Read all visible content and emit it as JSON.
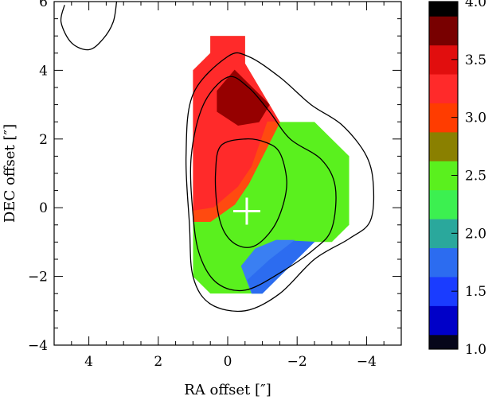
{
  "chart_data": {
    "type": "heatmap",
    "xlabel": "RA offset [″]",
    "ylabel": "DEC offset [″]",
    "xlim": [
      5,
      -5
    ],
    "ylim": [
      -4,
      6
    ],
    "xticks": [
      4,
      2,
      0,
      -2,
      -4
    ],
    "yticks": [
      -4,
      -2,
      0,
      2,
      4,
      6
    ],
    "xtick_labels": [
      "4",
      "2",
      "0",
      "−2",
      "−4"
    ],
    "ytick_labels": [
      "−4",
      "−2",
      "0",
      "2",
      "4",
      "6"
    ],
    "colorbar": {
      "range": [
        1.0,
        4.0
      ],
      "ticks": [
        1.0,
        1.5,
        2.0,
        2.5,
        3.0,
        3.5,
        4.0
      ],
      "tick_labels": [
        "1.0",
        "1.5",
        "2.0",
        "2.5",
        "3.0",
        "3.5",
        "4.0"
      ],
      "levels": [
        {
          "from": 1.0,
          "to": 1.125,
          "color": "#06061a"
        },
        {
          "from": 1.125,
          "to": 1.375,
          "color": "#0000c8"
        },
        {
          "from": 1.375,
          "to": 1.625,
          "color": "#1a3cff"
        },
        {
          "from": 1.625,
          "to": 1.875,
          "color": "#2c6cf0"
        },
        {
          "from": 1.875,
          "to": 2.125,
          "color": "#2aa89c"
        },
        {
          "from": 2.125,
          "to": 2.375,
          "color": "#3cf050"
        },
        {
          "from": 2.375,
          "to": 2.625,
          "color": "#5af01e"
        },
        {
          "from": 2.625,
          "to": 2.875,
          "color": "#8a8000"
        },
        {
          "from": 2.875,
          "to": 3.125,
          "color": "#ff3c00"
        },
        {
          "from": 3.125,
          "to": 3.375,
          "color": "#ff2a2a"
        },
        {
          "from": 3.375,
          "to": 3.625,
          "color": "#e10e0e"
        },
        {
          "from": 3.625,
          "to": 3.875,
          "color": "#780000"
        },
        {
          "from": 3.875,
          "to": 4.0,
          "color": "#000000"
        }
      ]
    },
    "map_region": [
      [
        1.0,
        3.5
      ],
      [
        1.0,
        4.0
      ],
      [
        0.5,
        4.5
      ],
      [
        0.5,
        5.0
      ],
      [
        -0.5,
        5.0
      ],
      [
        -0.5,
        4.2
      ],
      [
        -1.5,
        2.5
      ],
      [
        -2.5,
        2.5
      ],
      [
        -3.5,
        1.5
      ],
      [
        -3.5,
        -0.5
      ],
      [
        -3.0,
        -1.0
      ],
      [
        -2.5,
        -1.0
      ],
      [
        -1.0,
        -2.5
      ],
      [
        0.5,
        -2.5
      ],
      [
        1.0,
        -2.0
      ],
      [
        1.0,
        3.5
      ]
    ],
    "map_zones": [
      {
        "name": "red",
        "value": 3.2,
        "color": "#ff2a2a",
        "polygon": [
          [
            1.0,
            3.5
          ],
          [
            1.0,
            4.0
          ],
          [
            0.5,
            4.5
          ],
          [
            0.5,
            5.0
          ],
          [
            -0.5,
            5.0
          ],
          [
            -0.5,
            4.2
          ],
          [
            -1.5,
            2.5
          ],
          [
            -1.1,
            1.7
          ],
          [
            -0.6,
            0.7
          ],
          [
            -0.2,
            0.1
          ],
          [
            0.5,
            -0.4
          ],
          [
            1.0,
            -0.4
          ],
          [
            1.0,
            3.5
          ]
        ]
      },
      {
        "name": "darkred",
        "value": 3.7,
        "color": "#960000",
        "polygon": [
          [
            -0.2,
            4.0
          ],
          [
            -0.9,
            3.3
          ],
          [
            -1.2,
            3.0
          ],
          [
            -0.9,
            2.5
          ],
          [
            -0.3,
            2.4
          ],
          [
            0.3,
            2.8
          ],
          [
            0.3,
            3.4
          ]
        ]
      },
      {
        "name": "orange-red",
        "value": 2.9,
        "color": "#ff4a10",
        "polygon": [
          [
            1.0,
            -0.4
          ],
          [
            0.5,
            -0.4
          ],
          [
            -0.2,
            0.1
          ],
          [
            -0.6,
            0.7
          ],
          [
            -1.1,
            1.7
          ],
          [
            -1.5,
            2.5
          ],
          [
            -1.15,
            2.5
          ],
          [
            -0.7,
            1.2
          ],
          [
            -0.3,
            0.6
          ],
          [
            0.4,
            0.0
          ],
          [
            1.0,
            -0.1
          ]
        ]
      },
      {
        "name": "blue",
        "value": 1.6,
        "color": "#2c6cf0",
        "polygon": [
          [
            -2.5,
            -1.0
          ],
          [
            -1.0,
            -2.5
          ],
          [
            -0.7,
            -2.5
          ],
          [
            -0.4,
            -1.7
          ],
          [
            -0.8,
            -1.2
          ],
          [
            -1.4,
            -0.95
          ]
        ]
      },
      {
        "name": "lightblue",
        "value": 1.8,
        "color": "#3a7ff2",
        "polygon": [
          [
            -0.7,
            -2.5
          ],
          [
            -0.4,
            -1.7
          ],
          [
            -0.8,
            -1.2
          ],
          [
            -1.4,
            -0.95
          ],
          [
            -1.9,
            -0.95
          ],
          [
            -1.2,
            -1.5
          ],
          [
            -0.55,
            -2.1
          ]
        ]
      }
    ],
    "contours": [
      {
        "level": 1,
        "points": [
          [
            0.0,
            4.4
          ],
          [
            1.0,
            3.3
          ],
          [
            1.2,
            1.5
          ],
          [
            1.1,
            -0.5
          ],
          [
            1.0,
            -2.0
          ],
          [
            0.5,
            -2.8
          ],
          [
            -0.5,
            -3.0
          ],
          [
            -1.5,
            -2.5
          ],
          [
            -2.5,
            -1.5
          ],
          [
            -3.5,
            -0.9
          ],
          [
            -4.1,
            -0.4
          ],
          [
            -4.2,
            0.6
          ],
          [
            -4.0,
            1.5
          ],
          [
            -3.3,
            2.4
          ],
          [
            -2.4,
            3.0
          ],
          [
            -1.5,
            3.8
          ],
          [
            -0.6,
            4.4
          ]
        ],
        "closed": true
      },
      {
        "level": 2,
        "points": [
          [
            0.0,
            3.8
          ],
          [
            0.7,
            3.0
          ],
          [
            1.05,
            1.5
          ],
          [
            1.0,
            -0.2
          ],
          [
            0.8,
            -1.4
          ],
          [
            0.3,
            -2.2
          ],
          [
            -0.5,
            -2.4
          ],
          [
            -1.5,
            -1.9
          ],
          [
            -2.5,
            -1.2
          ],
          [
            -3.0,
            -0.6
          ],
          [
            -3.1,
            0.6
          ],
          [
            -2.7,
            1.4
          ],
          [
            -1.8,
            2.0
          ],
          [
            -1.2,
            2.8
          ],
          [
            -0.6,
            3.5
          ]
        ],
        "closed": true
      },
      {
        "level": 3,
        "points": [
          [
            -0.5,
            2.0
          ],
          [
            0.2,
            1.8
          ],
          [
            0.35,
            1.0
          ],
          [
            0.3,
            0.0
          ],
          [
            0.1,
            -0.7
          ],
          [
            -0.3,
            -1.1
          ],
          [
            -0.8,
            -1.1
          ],
          [
            -1.3,
            -0.6
          ],
          [
            -1.6,
            0.1
          ],
          [
            -1.7,
            0.8
          ],
          [
            -1.5,
            1.6
          ],
          [
            -1.1,
            1.9
          ]
        ],
        "closed": true
      },
      {
        "level": 1,
        "points": [
          [
            4.7,
            5.9
          ],
          [
            4.8,
            5.4
          ],
          [
            4.5,
            4.8
          ],
          [
            4.0,
            4.6
          ],
          [
            3.6,
            4.9
          ],
          [
            3.3,
            5.4
          ],
          [
            3.2,
            6.0
          ]
        ],
        "closed": false
      }
    ],
    "marker": {
      "type": "cross",
      "x": -0.55,
      "y": -0.1
    }
  }
}
